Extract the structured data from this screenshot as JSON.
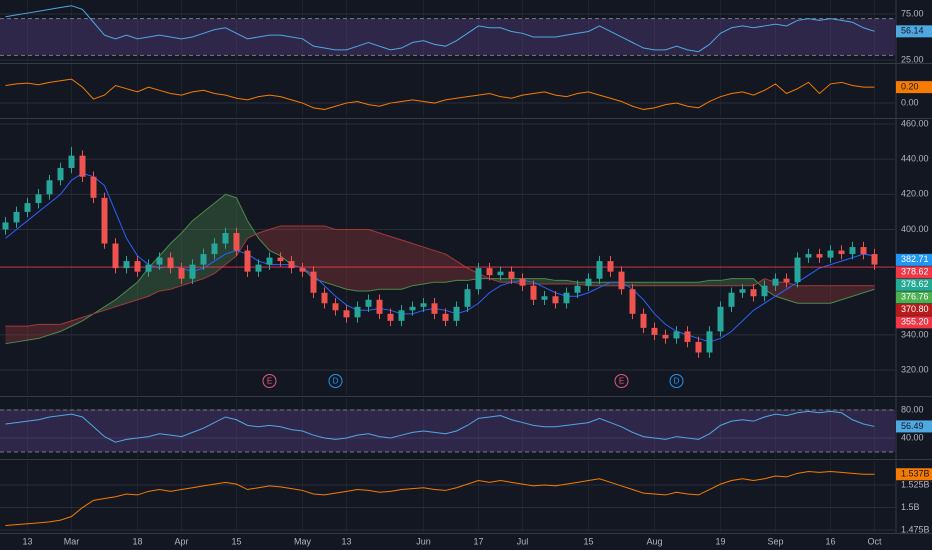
{
  "chart_data": [
    {
      "type": "line",
      "ylim": [
        22.8,
        90.2
      ],
      "yticks": [
        {
          "value": 75,
          "label": "75.00"
        },
        {
          "value": 25,
          "label": "25.00"
        }
      ],
      "bands": [
        70,
        30
      ],
      "band_color": "rgba(126,87,194,0.25)",
      "grid": true,
      "series": [
        {
          "color": "#4fa8e0",
          "values": [
            72,
            74,
            76,
            78,
            80,
            82,
            84,
            80,
            66,
            52,
            48,
            52,
            48,
            50,
            52,
            50,
            48,
            50,
            54,
            58,
            60,
            54,
            48,
            50,
            52,
            52,
            50,
            48,
            40,
            38,
            36,
            36,
            40,
            44,
            40,
            36,
            38,
            44,
            46,
            42,
            40,
            46,
            54,
            62,
            60,
            60,
            56,
            54,
            50,
            50,
            50,
            52,
            54,
            56,
            62,
            56,
            50,
            44,
            38,
            36,
            36,
            40,
            36,
            34,
            42,
            54,
            60,
            62,
            60,
            62,
            64,
            62,
            68,
            70,
            68,
            70,
            68,
            66,
            60,
            56.14
          ]
        }
      ],
      "last_label": "56.14"
    },
    {
      "type": "line",
      "ylim": [
        -0.175,
        0.49
      ],
      "yticks": [
        {
          "value": 0,
          "label": "0.00"
        }
      ],
      "grid": true,
      "series": [
        {
          "color": "#f57c00",
          "values": [
            0.22,
            0.24,
            0.25,
            0.23,
            0.26,
            0.28,
            0.3,
            0.2,
            0.05,
            0.1,
            0.22,
            0.18,
            0.14,
            0.2,
            0.16,
            0.12,
            0.1,
            0.14,
            0.16,
            0.12,
            0.1,
            0.06,
            0.04,
            0.08,
            0.1,
            0.08,
            0.04,
            0,
            -0.06,
            -0.08,
            -0.04,
            0,
            0.02,
            -0.02,
            -0.04,
            0,
            0.02,
            0.04,
            0.02,
            0,
            0.04,
            0.06,
            0.08,
            0.1,
            0.12,
            0.08,
            0.06,
            0.1,
            0.12,
            0.14,
            0.1,
            0.08,
            0.12,
            0.14,
            0.1,
            0.06,
            0.02,
            -0.04,
            -0.08,
            -0.06,
            -0.02,
            0,
            -0.04,
            -0.06,
            0.02,
            0.08,
            0.12,
            0.14,
            0.1,
            0.16,
            0.24,
            0.12,
            0.18,
            0.26,
            0.12,
            0.24,
            0.26,
            0.22,
            0.2,
            0.2
          ]
        }
      ],
      "last_label": "0.20"
    },
    {
      "type": "candlestick",
      "ylim": [
        305.8,
        462.3
      ],
      "yticks": [
        {
          "value": 460,
          "label": "460.00"
        },
        {
          "value": 440,
          "label": "440.00"
        },
        {
          "value": 420,
          "label": "420.00"
        },
        {
          "value": 400,
          "label": "400.00"
        },
        {
          "value": 340,
          "label": "340.00"
        },
        {
          "value": 320,
          "label": "320.00"
        }
      ],
      "grid": true,
      "up_color": "#26a69a",
      "down_color": "#ef5350",
      "open": [
        400,
        404,
        410,
        415,
        420,
        428,
        435,
        442,
        430,
        418,
        392,
        378,
        382,
        376,
        380,
        384,
        378,
        372,
        380,
        386,
        392,
        398,
        388,
        376,
        380,
        384,
        382,
        378,
        376,
        364,
        358,
        354,
        350,
        356,
        360,
        352,
        348,
        354,
        356,
        358,
        352,
        348,
        356,
        366,
        378,
        374,
        376,
        372,
        368,
        360,
        362,
        358,
        364,
        368,
        372,
        382,
        376,
        366,
        352,
        344,
        340,
        338,
        342,
        336,
        330,
        342,
        356,
        364,
        366,
        362,
        368,
        372,
        370,
        384,
        386,
        384,
        388,
        386,
        390,
        386
      ],
      "high": [
        407,
        413,
        418,
        423,
        431,
        438,
        447,
        445,
        433,
        421,
        395,
        385,
        385,
        383,
        387,
        387,
        381,
        383,
        389,
        395,
        401,
        401,
        391,
        383,
        387,
        387,
        385,
        381,
        379,
        367,
        361,
        357,
        359,
        363,
        363,
        355,
        357,
        359,
        361,
        361,
        355,
        359,
        369,
        381,
        381,
        379,
        379,
        375,
        371,
        365,
        365,
        367,
        371,
        375,
        385,
        385,
        379,
        369,
        355,
        347,
        343,
        345,
        345,
        339,
        345,
        359,
        367,
        369,
        369,
        371,
        375,
        375,
        387,
        389,
        389,
        391,
        391,
        393,
        393,
        389
      ],
      "low": [
        397,
        401,
        407,
        412,
        417,
        425,
        432,
        427,
        415,
        389,
        375,
        375,
        373,
        373,
        377,
        375,
        369,
        369,
        377,
        383,
        389,
        385,
        373,
        373,
        377,
        379,
        375,
        373,
        361,
        355,
        351,
        347,
        347,
        353,
        349,
        345,
        345,
        351,
        353,
        349,
        345,
        345,
        353,
        363,
        371,
        371,
        369,
        365,
        357,
        357,
        355,
        355,
        361,
        365,
        369,
        373,
        363,
        349,
        341,
        337,
        335,
        335,
        333,
        327,
        327,
        339,
        353,
        361,
        359,
        359,
        365,
        367,
        367,
        381,
        381,
        381,
        383,
        383,
        383,
        377
      ],
      "close": [
        404,
        410,
        415,
        420,
        428,
        435,
        442,
        430,
        418,
        392,
        378,
        382,
        376,
        380,
        384,
        378,
        372,
        380,
        386,
        392,
        398,
        388,
        376,
        380,
        384,
        382,
        378,
        376,
        364,
        358,
        354,
        350,
        356,
        360,
        352,
        348,
        354,
        356,
        358,
        352,
        348,
        356,
        366,
        378,
        374,
        376,
        372,
        368,
        360,
        362,
        358,
        364,
        368,
        372,
        382,
        376,
        366,
        352,
        344,
        340,
        338,
        342,
        336,
        330,
        342,
        356,
        364,
        366,
        362,
        368,
        372,
        370,
        384,
        386,
        384,
        388,
        386,
        390,
        386,
        380
      ],
      "series": [
        {
          "color": "#2962ff",
          "values": [
            395,
            400,
            405,
            410,
            415,
            420,
            428,
            432,
            430,
            425,
            410,
            395,
            385,
            380,
            378,
            379,
            378,
            376,
            378,
            382,
            386,
            388,
            386,
            382,
            380,
            380,
            380,
            378,
            374,
            368,
            362,
            357,
            354,
            354,
            355,
            354,
            352,
            352,
            354,
            355,
            354,
            352,
            354,
            358,
            364,
            368,
            370,
            371,
            370,
            367,
            364,
            362,
            362,
            364,
            367,
            370,
            370,
            366,
            360,
            352,
            346,
            342,
            340,
            338,
            336,
            338,
            342,
            348,
            354,
            358,
            362,
            366,
            370,
            374,
            378,
            380,
            382,
            384,
            386,
            385
          ]
        }
      ],
      "cloud": {
        "span_a": [
          335,
          336,
          337,
          338,
          340,
          342,
          345,
          348,
          352,
          356,
          360,
          365,
          370,
          378,
          385,
          392,
          398,
          405,
          410,
          415,
          420,
          418,
          405,
          395,
          388,
          385,
          380,
          378,
          372,
          370,
          368,
          366,
          365,
          365,
          366,
          366,
          366,
          368,
          369,
          370,
          370,
          371,
          371,
          372,
          372,
          372,
          372,
          372,
          372,
          372,
          371,
          371,
          370,
          370,
          370,
          370,
          370,
          370,
          370,
          370,
          370,
          370,
          370,
          370,
          371,
          371,
          372,
          372,
          372,
          366,
          362,
          360,
          358,
          358,
          358,
          358,
          360,
          362,
          364,
          366
        ],
        "span_b": [
          345,
          345,
          345,
          346,
          346,
          346,
          348,
          350,
          352,
          354,
          356,
          358,
          360,
          362,
          365,
          366,
          368,
          370,
          372,
          375,
          380,
          385,
          395,
          398,
          400,
          402,
          402,
          402,
          402,
          402,
          400,
          400,
          400,
          400,
          398,
          396,
          394,
          392,
          390,
          388,
          386,
          382,
          378,
          375,
          372,
          370,
          370,
          369,
          369,
          369,
          369,
          369,
          369,
          368,
          368,
          368,
          368,
          368,
          368,
          368,
          368,
          368,
          368,
          368,
          368,
          368,
          368,
          368,
          368,
          372,
          370,
          370,
          368,
          368,
          368,
          368,
          368,
          368,
          368,
          368
        ],
        "a_color": "#4c8a4c",
        "b_color": "#a33a3a"
      },
      "price_tags": [
        {
          "value": 382.71,
          "label": "382.71",
          "color": "#2196f3"
        },
        {
          "value": 378.62,
          "label": "378.62",
          "color": "#f23645"
        },
        {
          "value": 378.62,
          "label": "378.62",
          "color": "#22ab94"
        },
        {
          "value": 376.76,
          "label": "376.76",
          "color": "#4caf50"
        },
        {
          "value": 370.8,
          "label": "370.80",
          "color": "#b71c1c"
        },
        {
          "value": 355.2,
          "label": "355.20",
          "color": "#f23645"
        }
      ],
      "events": [
        null,
        null,
        null,
        null,
        null,
        null,
        null,
        null,
        null,
        null,
        null,
        null,
        null,
        null,
        null,
        null,
        null,
        null,
        null,
        null,
        null,
        null,
        null,
        null,
        "E",
        null,
        null,
        null,
        null,
        null,
        "D",
        null,
        null,
        null,
        null,
        null,
        null,
        null,
        null,
        null,
        null,
        null,
        null,
        null,
        null,
        null,
        null,
        null,
        null,
        null,
        null,
        null,
        null,
        null,
        null,
        null,
        "E",
        null,
        null,
        null,
        null,
        "D",
        null,
        null,
        null,
        null,
        null,
        null,
        null,
        null,
        null,
        null,
        null,
        null,
        null,
        null,
        null,
        null,
        null,
        null
      ],
      "event_colors": {
        "E": "#e05a7a",
        "D": "#2196f3"
      }
    },
    {
      "type": "line",
      "ylim": [
        11.4,
        97.1
      ],
      "yticks": [
        {
          "value": 80,
          "label": "80.00"
        },
        {
          "value": 40,
          "label": "40.00"
        }
      ],
      "bands": [
        80,
        20
      ],
      "band_color": "rgba(126,87,194,0.25)",
      "grid": true,
      "series": [
        {
          "color": "#4fa8e0",
          "values": [
            60,
            62,
            64,
            66,
            70,
            72,
            74,
            70,
            56,
            42,
            34,
            38,
            40,
            42,
            46,
            44,
            42,
            48,
            54,
            62,
            70,
            66,
            58,
            56,
            58,
            56,
            52,
            50,
            44,
            40,
            38,
            40,
            44,
            46,
            42,
            40,
            44,
            48,
            50,
            48,
            46,
            50,
            58,
            68,
            70,
            72,
            66,
            62,
            58,
            56,
            56,
            58,
            60,
            62,
            68,
            62,
            56,
            48,
            42,
            40,
            38,
            42,
            40,
            38,
            46,
            58,
            64,
            66,
            64,
            70,
            74,
            72,
            76,
            78,
            76,
            78,
            76,
            66,
            60,
            56.49
          ]
        }
      ],
      "last_label": "56.49"
    },
    {
      "type": "line",
      "ylim": [
        1.4728,
        1.5517
      ],
      "yticks": [
        {
          "value": 1.525,
          "label": "1.525B"
        },
        {
          "value": 1.5,
          "label": "1.5B"
        },
        {
          "value": 1.475,
          "label": "1.475B"
        }
      ],
      "grid": true,
      "series": [
        {
          "color": "#f57c00",
          "values": [
            1.48,
            1.481,
            1.482,
            1.483,
            1.484,
            1.486,
            1.49,
            1.5,
            1.508,
            1.51,
            1.512,
            1.515,
            1.514,
            1.518,
            1.52,
            1.518,
            1.52,
            1.522,
            1.524,
            1.526,
            1.528,
            1.526,
            1.52,
            1.522,
            1.524,
            1.523,
            1.521,
            1.519,
            1.515,
            1.514,
            1.516,
            1.518,
            1.52,
            1.519,
            1.517,
            1.518,
            1.52,
            1.521,
            1.522,
            1.52,
            1.519,
            1.522,
            1.526,
            1.53,
            1.528,
            1.53,
            1.528,
            1.526,
            1.524,
            1.525,
            1.524,
            1.526,
            1.528,
            1.53,
            1.532,
            1.528,
            1.524,
            1.52,
            1.516,
            1.515,
            1.514,
            1.517,
            1.515,
            1.514,
            1.52,
            1.526,
            1.53,
            1.532,
            1.53,
            1.532,
            1.535,
            1.534,
            1.538,
            1.54,
            1.539,
            1.54,
            1.539,
            1.538,
            1.537,
            1.537
          ]
        }
      ],
      "last_label": "1.537B",
      "categories": [
        null,
        null,
        "13",
        null,
        null,
        null,
        "Mar",
        null,
        null,
        null,
        null,
        null,
        "18",
        null,
        null,
        null,
        "Apr",
        null,
        null,
        null,
        null,
        "15",
        null,
        null,
        null,
        null,
        null,
        "May",
        null,
        null,
        null,
        "13",
        null,
        null,
        null,
        null,
        null,
        null,
        "Jun",
        null,
        null,
        null,
        null,
        "17",
        null,
        null,
        null,
        "Jul",
        null,
        null,
        null,
        null,
        null,
        "15",
        null,
        null,
        null,
        null,
        null,
        "Aug",
        null,
        null,
        null,
        null,
        null,
        "19",
        null,
        null,
        null,
        null,
        "Sep",
        null,
        null,
        null,
        null,
        "16",
        null,
        null,
        null,
        "Oct"
      ]
    }
  ]
}
